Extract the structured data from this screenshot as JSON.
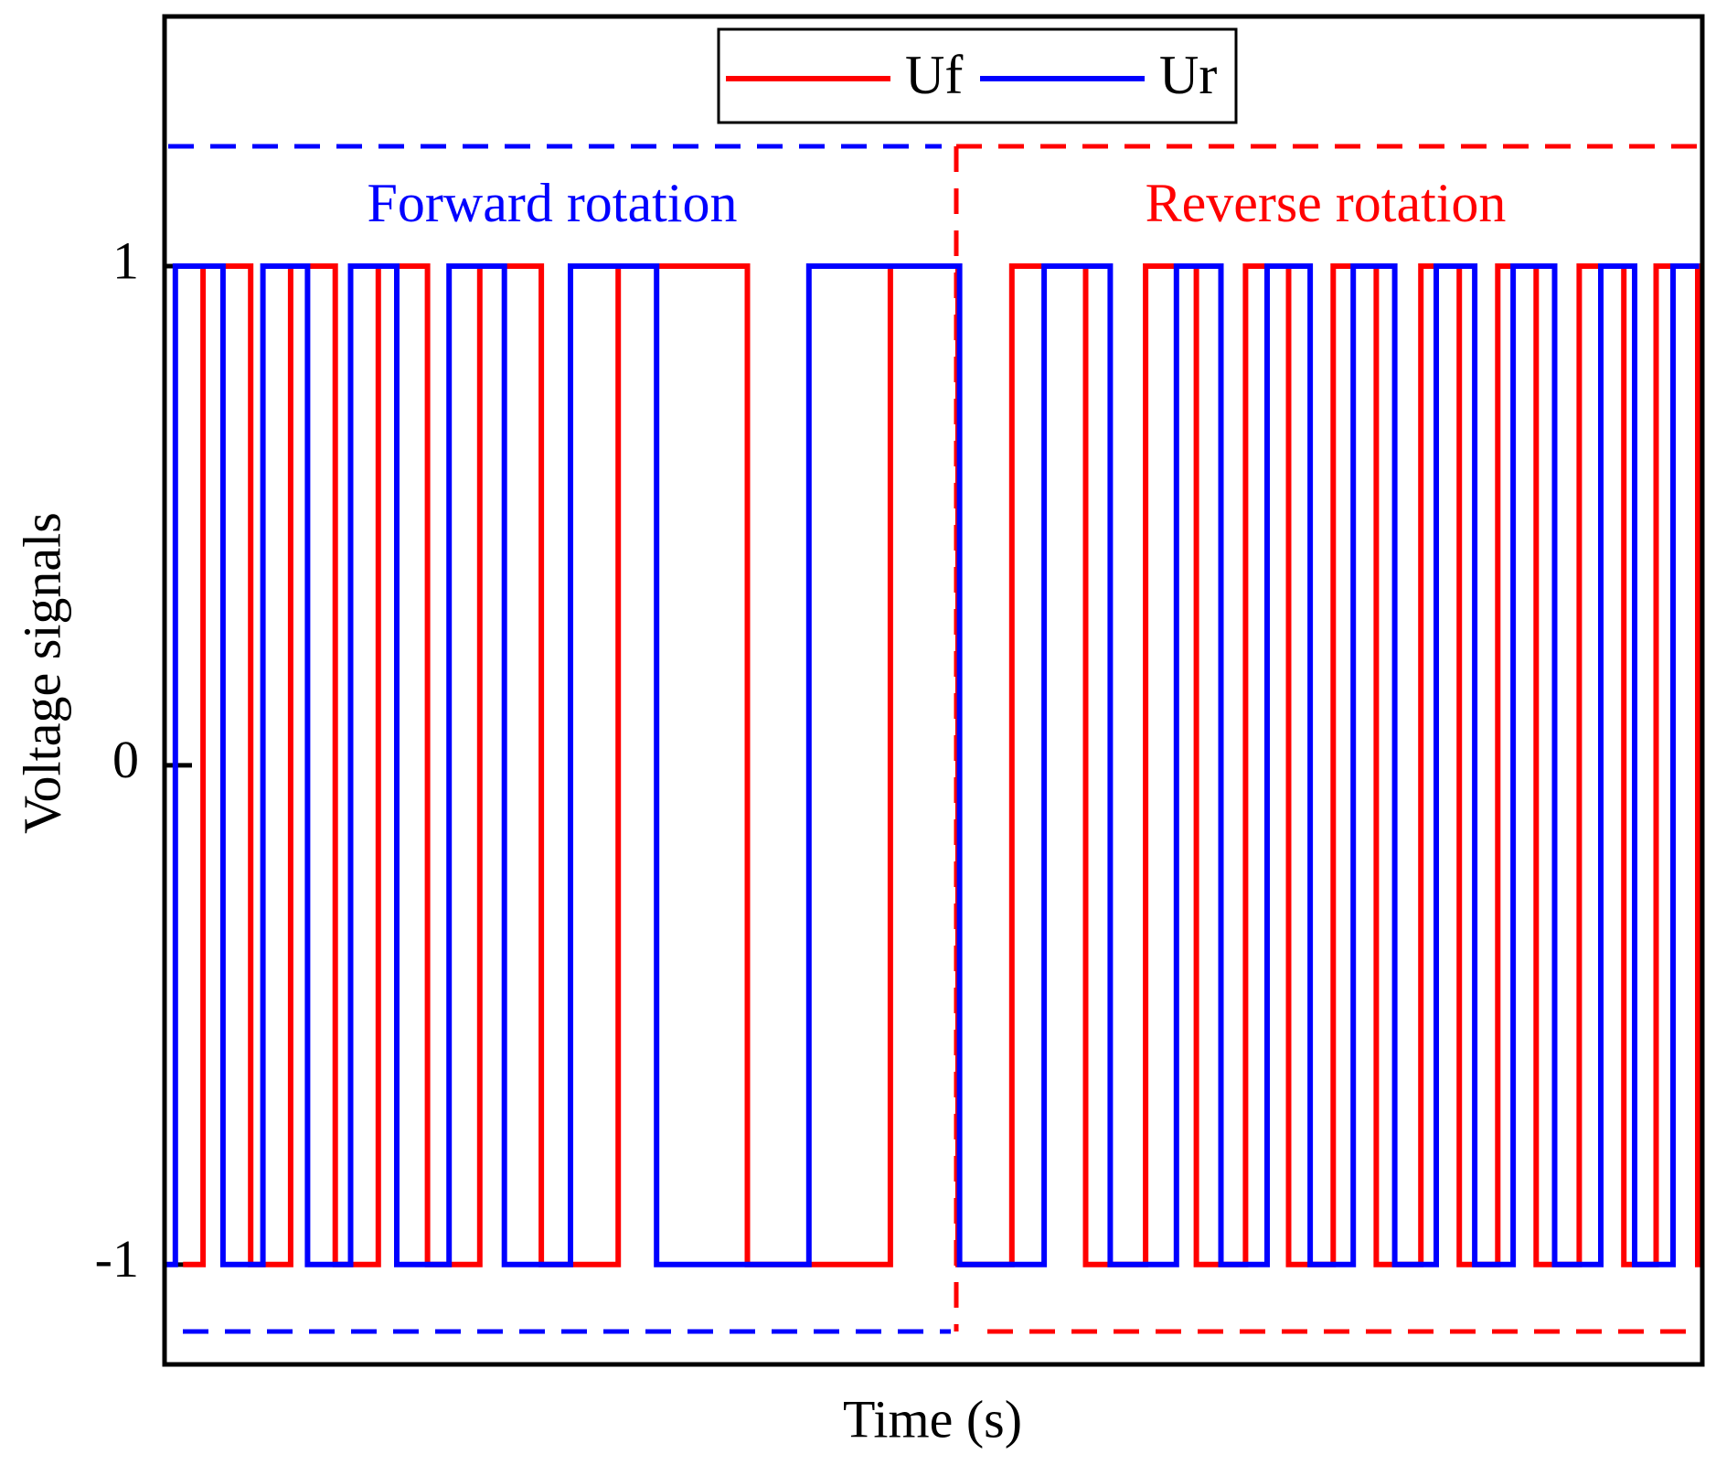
{
  "chart_data": {
    "type": "line",
    "x_label": "Time (s)",
    "y_label": "Voltage signals",
    "xlim": [
      0,
      10
    ],
    "ylim": [
      -1.2,
      1.5
    ],
    "yticks": [
      -1,
      0,
      1
    ],
    "legend": "top-center",
    "annotations": [
      {
        "text": "Forward rotation",
        "color": "#0000ff"
      },
      {
        "text": "Reverse rotation",
        "color": "#ff0000"
      }
    ],
    "series": [
      {
        "name": "Uf",
        "color": "#ff0000",
        "x": [
          0.12,
          0.25,
          0.25,
          0.56,
          0.56,
          0.82,
          0.82,
          1.11,
          1.11,
          1.39,
          1.39,
          1.71,
          1.71,
          2.05,
          2.05,
          2.45,
          2.45,
          2.95,
          2.95,
          3.79,
          3.79,
          4.72,
          4.72,
          5.16,
          5.16,
          5.51,
          5.51,
          5.99,
          5.99,
          6.38,
          6.38,
          6.71,
          6.71,
          7.03,
          7.03,
          7.31,
          7.31,
          7.6,
          7.6,
          7.88,
          7.88,
          8.17,
          8.17,
          8.42,
          8.42,
          8.67,
          8.67,
          8.92,
          8.92,
          9.2,
          9.2,
          9.49,
          9.49,
          9.7,
          9.7,
          9.97,
          9.97,
          9.99
        ],
        "values": [
          -1,
          -1,
          1,
          1,
          -1,
          -1,
          1,
          1,
          -1,
          -1,
          1,
          1,
          -1,
          -1,
          1,
          1,
          -1,
          -1,
          1,
          1,
          -1,
          -1,
          1,
          1,
          -1,
          -1,
          1,
          1,
          -1,
          -1,
          1,
          1,
          -1,
          -1,
          1,
          1,
          -1,
          -1,
          1,
          1,
          -1,
          -1,
          1,
          1,
          -1,
          -1,
          1,
          1,
          -1,
          -1,
          1,
          1,
          -1,
          -1,
          1,
          1,
          -1,
          -1
        ]
      },
      {
        "name": "Ur",
        "color": "#0000ff",
        "x": [
          0.01,
          0.07,
          0.07,
          0.38,
          0.38,
          0.64,
          0.64,
          0.93,
          0.93,
          1.21,
          1.21,
          1.51,
          1.51,
          1.85,
          1.85,
          2.21,
          2.21,
          2.64,
          2.64,
          3.2,
          3.2,
          4.19,
          4.19,
          5.17,
          5.17,
          5.72,
          5.72,
          6.15,
          6.15,
          6.58,
          6.58,
          6.87,
          6.87,
          7.17,
          7.17,
          7.45,
          7.45,
          7.73,
          7.73,
          8.0,
          8.0,
          8.27,
          8.27,
          8.52,
          8.52,
          8.77,
          8.77,
          9.04,
          9.04,
          9.34,
          9.34,
          9.56,
          9.56,
          9.81,
          9.81,
          9.98
        ],
        "values": [
          -1,
          -1,
          1,
          1,
          -1,
          -1,
          1,
          1,
          -1,
          -1,
          1,
          1,
          -1,
          -1,
          1,
          1,
          -1,
          -1,
          1,
          1,
          -1,
          -1,
          1,
          1,
          -1,
          -1,
          1,
          1,
          -1,
          -1,
          1,
          1,
          -1,
          -1,
          1,
          1,
          -1,
          -1,
          1,
          1,
          -1,
          -1,
          1,
          1,
          -1,
          -1,
          1,
          1,
          -1,
          -1,
          1,
          1,
          -1,
          -1,
          1,
          1
        ]
      }
    ]
  }
}
